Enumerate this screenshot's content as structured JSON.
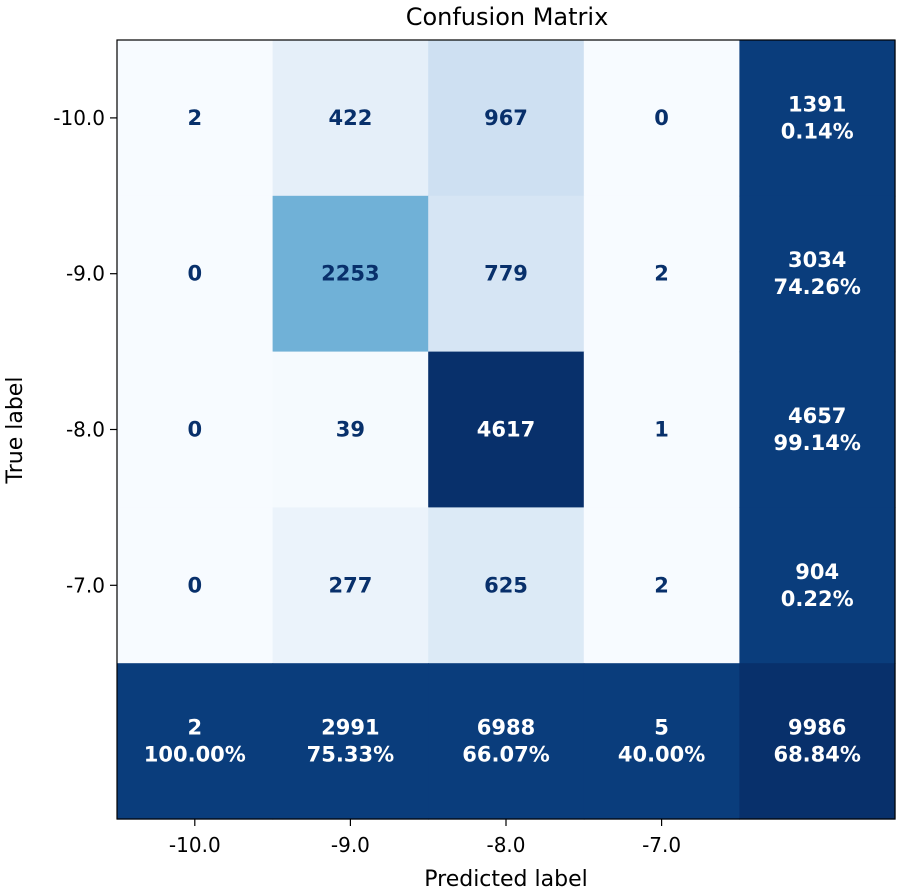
{
  "chart_data": {
    "type": "heatmap",
    "title": "Confusion Matrix",
    "xlabel": "Predicted label",
    "ylabel": "True label",
    "x_tick_labels": [
      "-10.0",
      "-9.0",
      "-8.0",
      "-7.0"
    ],
    "y_tick_labels": [
      "-10.0",
      "-9.0",
      "-8.0",
      "-7.0"
    ],
    "matrix": [
      [
        2,
        422,
        967,
        0
      ],
      [
        0,
        2253,
        779,
        2
      ],
      [
        0,
        39,
        4617,
        1
      ],
      [
        0,
        277,
        625,
        2
      ]
    ],
    "row_totals": [
      {
        "count": "1391",
        "percent": "0.14%"
      },
      {
        "count": "3034",
        "percent": "74.26%"
      },
      {
        "count": "4657",
        "percent": "99.14%"
      },
      {
        "count": "904",
        "percent": "0.22%"
      }
    ],
    "col_totals": [
      {
        "count": "2",
        "percent": "100.00%"
      },
      {
        "count": "2991",
        "percent": "75.33%"
      },
      {
        "count": "6988",
        "percent": "66.07%"
      },
      {
        "count": "5",
        "percent": "40.00%"
      }
    ],
    "grand_total": {
      "count": "9986",
      "percent": "68.84%"
    },
    "colormap": "Blues",
    "summary_fill": "#0a3d7c",
    "grand_total_fill": "#08306b",
    "light_text_color": "#ffffff",
    "dark_text_color": "#08306b"
  }
}
